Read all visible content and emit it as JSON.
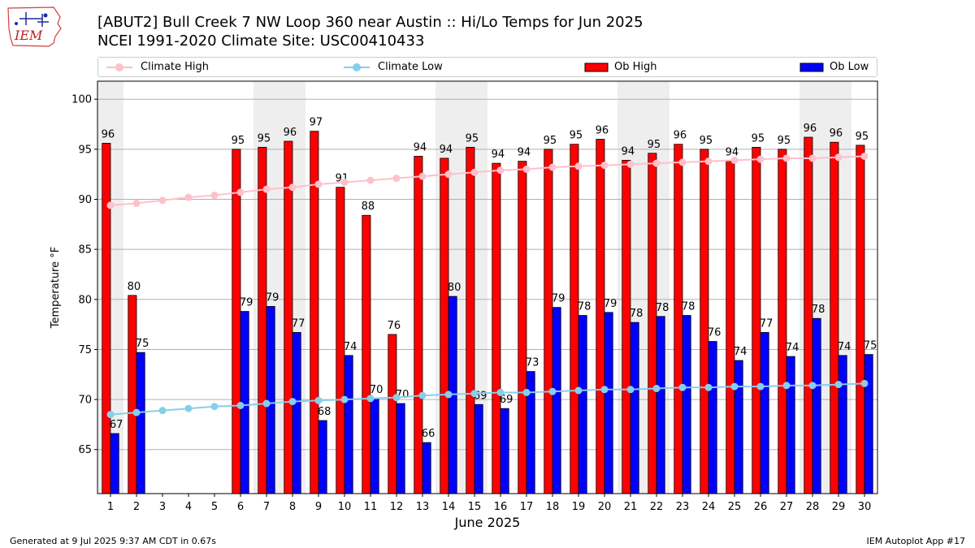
{
  "header": {
    "logo_text": "IEM",
    "title_line1": "[ABUT2] Bull Creek 7 NW Loop 360 near Austin :: Hi/Lo Temps for Jun 2025",
    "title_line2": "NCEI 1991-2020 Climate Site: USC00410433"
  },
  "footer": {
    "left": "Generated at 9 Jul 2025 9:37 AM CDT in 0.67s",
    "right": "IEM Autoplot App #17"
  },
  "colors": {
    "ob_high": "#ff0000",
    "ob_low": "#0000ff",
    "climate_high": "#ffc0cb",
    "climate_low": "#87ceeb",
    "weekend_shade": "#eeeeee",
    "grid": "#b0b0b0"
  },
  "chart_data": {
    "type": "bar",
    "xlabel": "June 2025",
    "ylabel": "Temperature °F",
    "ylim": [
      60.6,
      101.8
    ],
    "yticks": [
      65,
      70,
      75,
      80,
      85,
      90,
      95,
      100
    ],
    "grid": "horizontal",
    "legend_position": "top",
    "categories": [
      "1",
      "2",
      "3",
      "4",
      "5",
      "6",
      "7",
      "8",
      "9",
      "10",
      "11",
      "12",
      "13",
      "14",
      "15",
      "16",
      "17",
      "18",
      "19",
      "20",
      "21",
      "22",
      "23",
      "24",
      "25",
      "26",
      "27",
      "28",
      "29",
      "30"
    ],
    "shaded_days": [
      1,
      7,
      8,
      14,
      15,
      21,
      22,
      28,
      29
    ],
    "series": [
      {
        "name": "Climate High",
        "kind": "line",
        "values": [
          89.4,
          89.6,
          89.9,
          90.2,
          90.4,
          90.7,
          91.0,
          91.2,
          91.5,
          91.7,
          91.9,
          92.1,
          92.3,
          92.5,
          92.7,
          92.9,
          93.0,
          93.2,
          93.3,
          93.4,
          93.5,
          93.6,
          93.7,
          93.8,
          93.9,
          94.0,
          94.1,
          94.1,
          94.2,
          94.3
        ]
      },
      {
        "name": "Climate Low",
        "kind": "line",
        "values": [
          68.5,
          68.7,
          68.9,
          69.1,
          69.3,
          69.4,
          69.6,
          69.8,
          69.9,
          70.0,
          70.1,
          70.2,
          70.4,
          70.5,
          70.6,
          70.7,
          70.7,
          70.8,
          70.9,
          71.0,
          71.0,
          71.1,
          71.2,
          71.2,
          71.3,
          71.3,
          71.4,
          71.4,
          71.5,
          71.6
        ]
      },
      {
        "name": "Ob High",
        "kind": "bar",
        "values": [
          95.6,
          80.4,
          null,
          null,
          null,
          95.0,
          95.2,
          95.8,
          96.8,
          91.2,
          88.4,
          76.5,
          94.3,
          94.1,
          95.2,
          93.6,
          93.8,
          95.0,
          95.5,
          96.0,
          93.9,
          94.6,
          95.5,
          95.0,
          93.8,
          95.2,
          95.0,
          96.2,
          95.7,
          95.4
        ],
        "labels": [
          "96",
          "80",
          "",
          "",
          "",
          "95",
          "95",
          "96",
          "97",
          "91",
          "88",
          "76",
          "94",
          "94",
          "95",
          "94",
          "94",
          "95",
          "95",
          "96",
          "94",
          "95",
          "96",
          "95",
          "94",
          "95",
          "95",
          "96",
          "96",
          "95"
        ]
      },
      {
        "name": "Ob Low",
        "kind": "bar",
        "values": [
          66.6,
          74.7,
          null,
          null,
          null,
          78.8,
          79.3,
          76.7,
          67.9,
          74.4,
          70.1,
          69.6,
          65.7,
          80.3,
          69.5,
          69.1,
          72.8,
          79.2,
          78.4,
          78.7,
          77.7,
          78.3,
          78.4,
          75.8,
          73.9,
          76.7,
          74.3,
          78.1,
          74.4,
          74.5
        ],
        "labels": [
          "67",
          "75",
          "",
          "",
          "",
          "79",
          "79",
          "77",
          "68",
          "74",
          "70",
          "70",
          "66",
          "80",
          "69",
          "69",
          "73",
          "79",
          "78",
          "79",
          "78",
          "78",
          "78",
          "76",
          "74",
          "77",
          "74",
          "78",
          "74",
          "75"
        ]
      }
    ]
  }
}
